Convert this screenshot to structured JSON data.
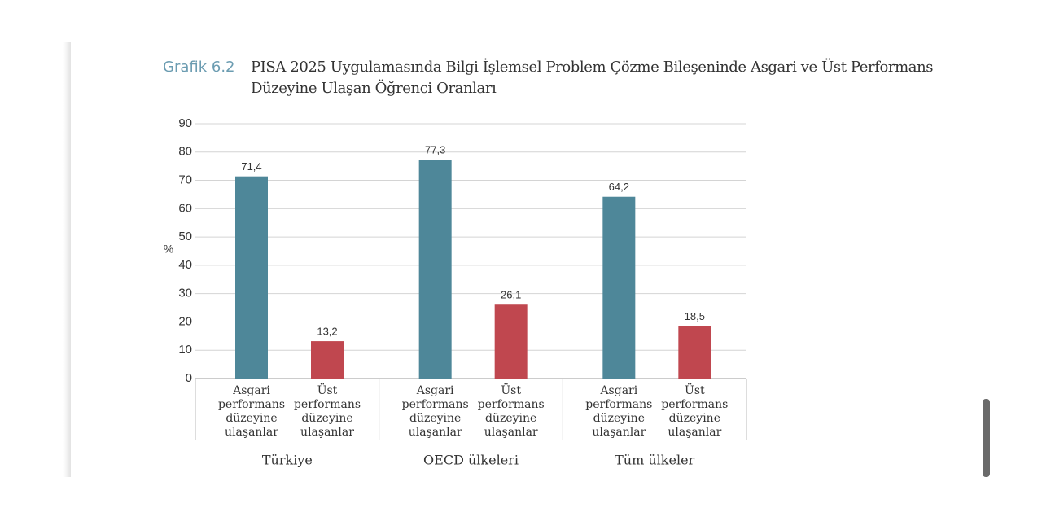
{
  "chart_data": {
    "type": "bar",
    "figure_label": "Grafik 6.2",
    "title": "PISA 2025 Uygulamasında Bilgi İşlemsel Problem Çözme Bileşeninde Asgari ve Üst Performans Düzeyine Ulaşan Öğrenci Oranları",
    "ylabel": "%",
    "groups": [
      "Türkiye",
      "OECD ülkeleri",
      "Tüm ülkeler"
    ],
    "series": [
      {
        "name": "Asgari performans düzeyine ulaşanlar",
        "color": "#4e8799",
        "values": [
          71.4,
          77.3,
          64.2
        ],
        "value_labels": [
          "71,4",
          "77,3",
          "64,2"
        ]
      },
      {
        "name": "Üst performans düzeyine ulaşanlar",
        "color": "#c0474f",
        "values": [
          13.2,
          26.1,
          18.5
        ],
        "value_labels": [
          "13,2",
          "26,1",
          "18,5"
        ]
      }
    ],
    "ylim": [
      0,
      90
    ],
    "yticks": [
      0,
      10,
      20,
      30,
      40,
      50,
      60,
      70,
      80,
      90
    ],
    "grid": true
  }
}
